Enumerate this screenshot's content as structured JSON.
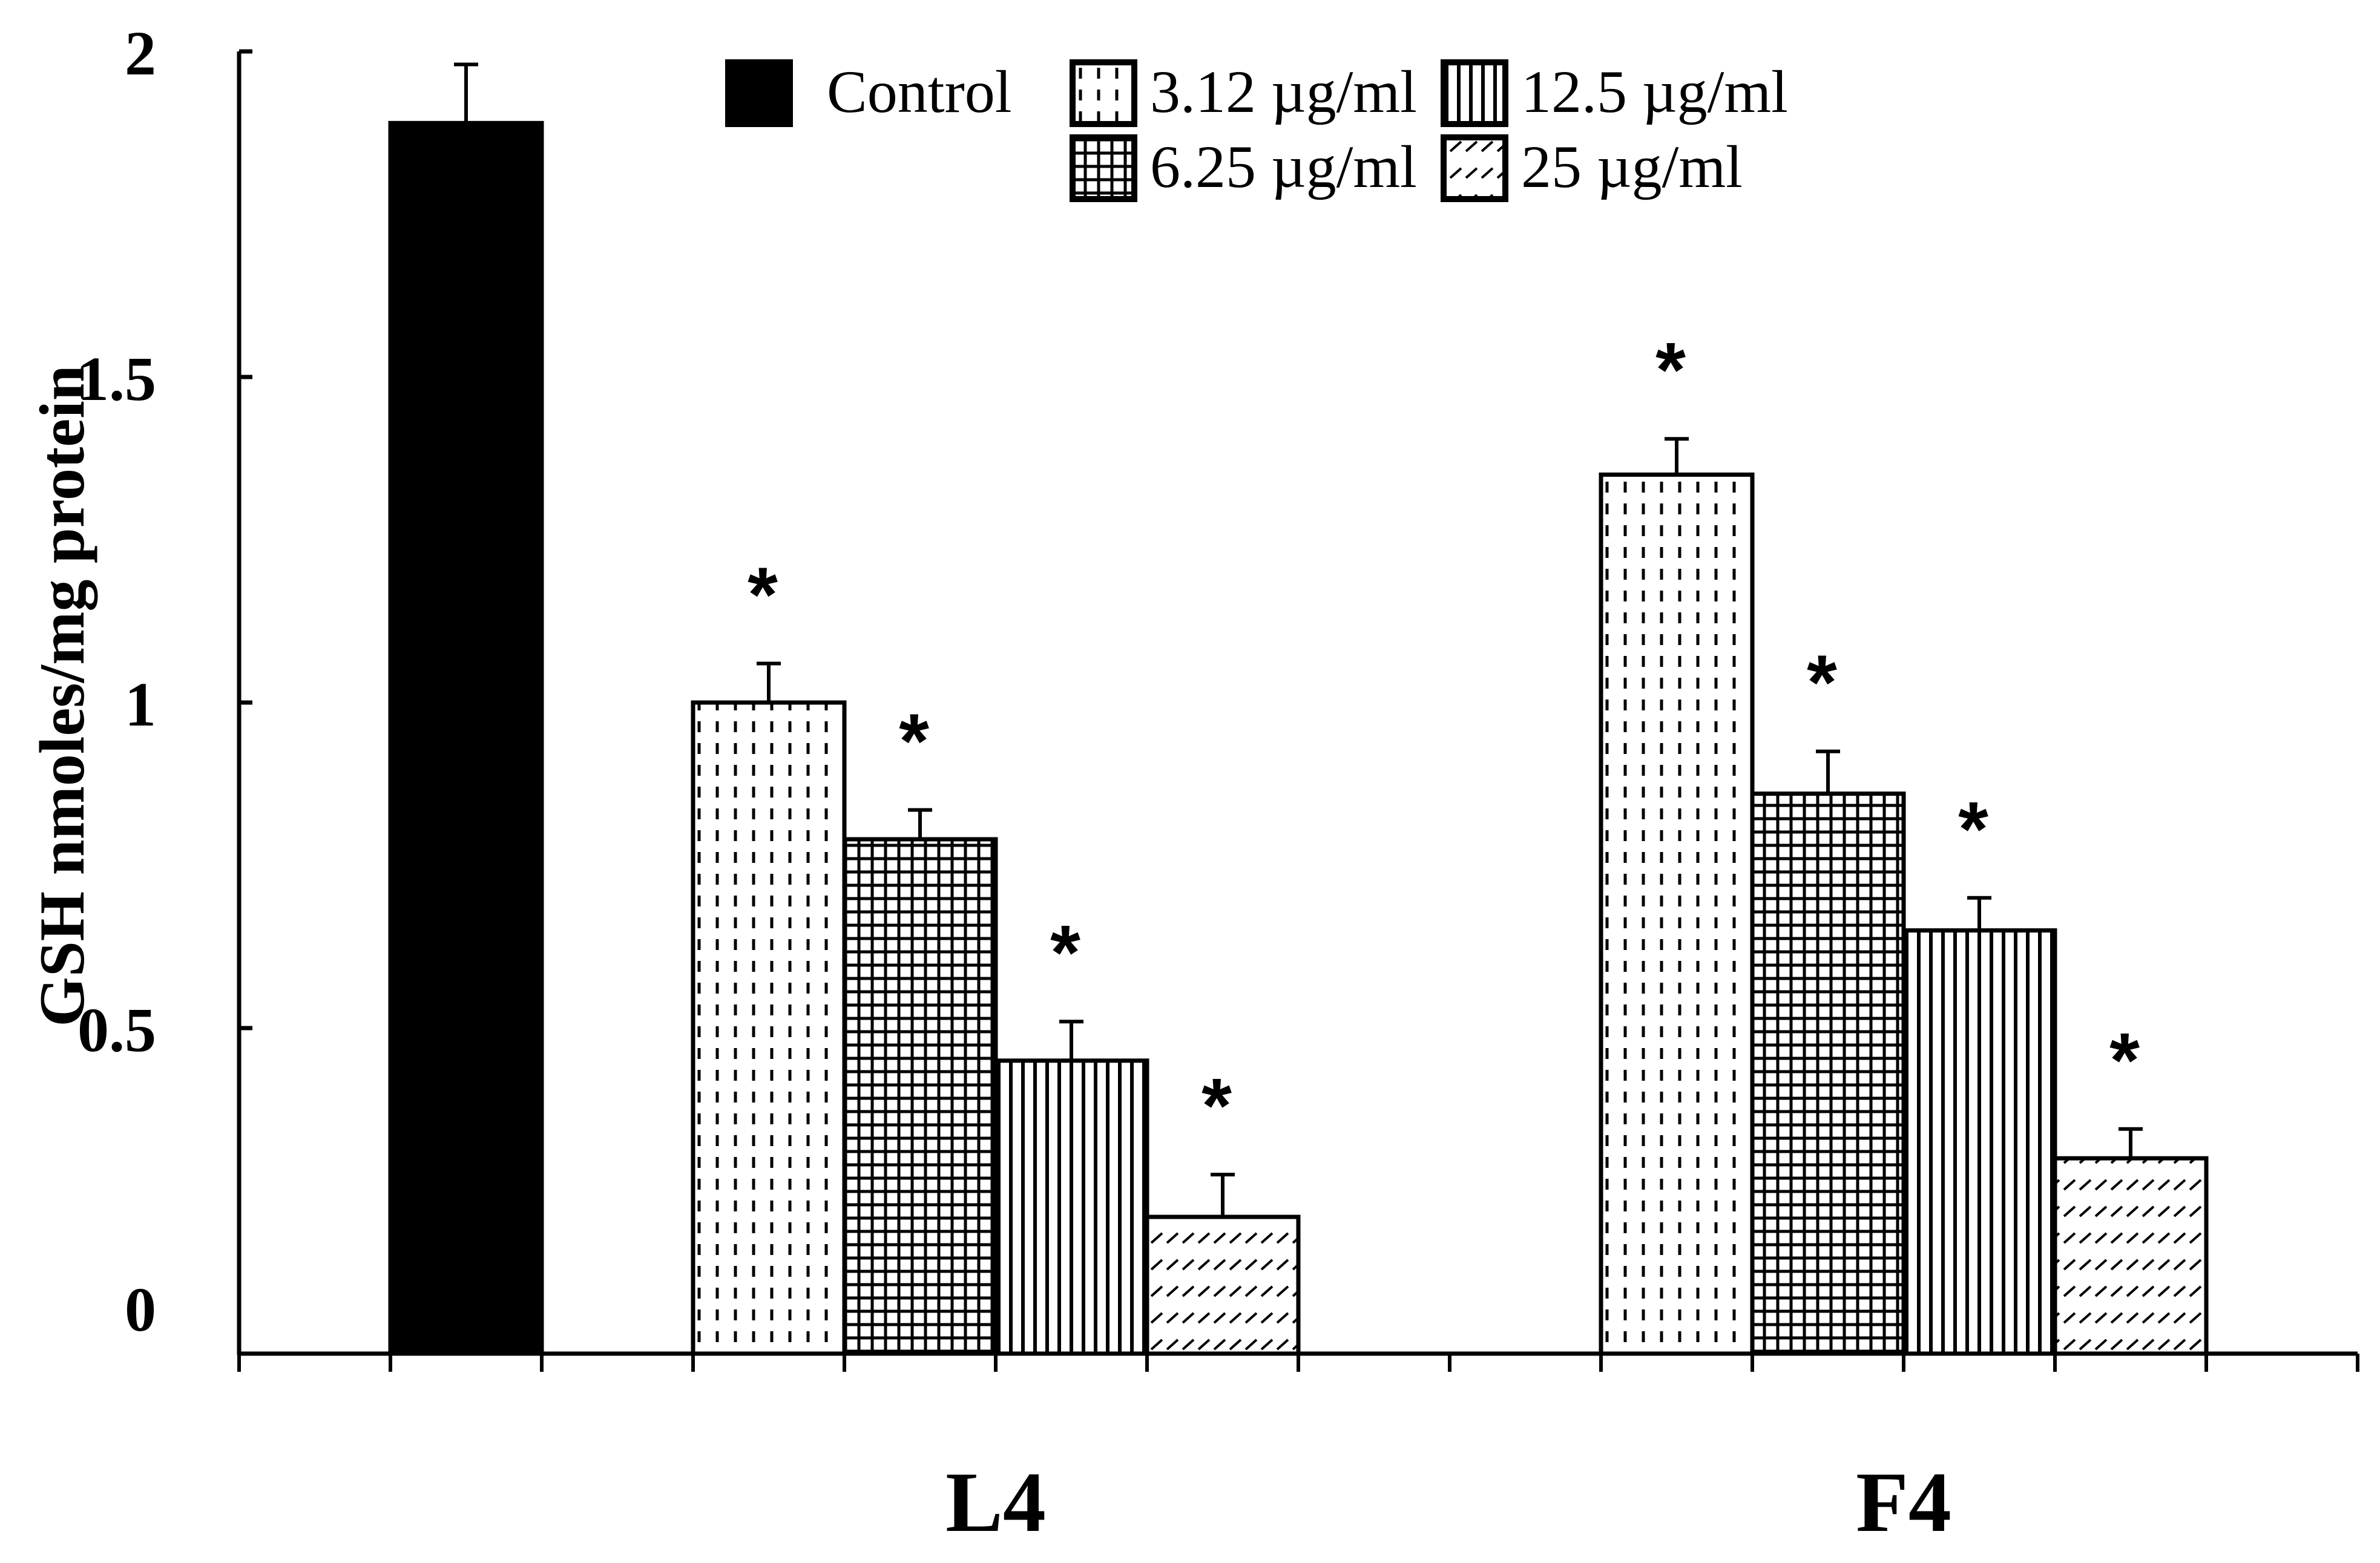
{
  "chart_data": {
    "type": "bar",
    "title": "",
    "xlabel": "",
    "ylabel": "GSH nmoles/mg protein",
    "ylim": [
      0,
      2
    ],
    "yticks": [
      "0",
      "0.5",
      "1",
      "1.5",
      "2"
    ],
    "groups": [
      {
        "name": "",
        "bars": [
          {
            "series": "Control",
            "value": 1.89,
            "error": 0.09,
            "significant": false
          }
        ]
      },
      {
        "name": "L4",
        "bars": [
          {
            "series": "3.12 µg/ml",
            "value": 1.0,
            "error": 0.06,
            "significant": true
          },
          {
            "series": "6.25 µg/ml",
            "value": 0.79,
            "error": 0.045,
            "significant": true
          },
          {
            "series": "12.5 µg/ml",
            "value": 0.45,
            "error": 0.06,
            "significant": true
          },
          {
            "series": "25 µg/ml",
            "value": 0.21,
            "error": 0.065,
            "significant": true
          }
        ]
      },
      {
        "name": "F4",
        "bars": [
          {
            "series": "3.12 µg/ml",
            "value": 1.35,
            "error": 0.055,
            "significant": true
          },
          {
            "series": "6.25 µg/ml",
            "value": 0.86,
            "error": 0.065,
            "significant": true
          },
          {
            "series": "12.5 µg/ml",
            "value": 0.65,
            "error": 0.05,
            "significant": true
          },
          {
            "series": "25 µg/ml",
            "value": 0.3,
            "error": 0.045,
            "significant": true
          }
        ]
      }
    ],
    "legend": [
      {
        "label": "Control",
        "pattern": "solid"
      },
      {
        "label": "3.12 µg/ml",
        "pattern": "dashes"
      },
      {
        "label": "12.5 µg/ml",
        "pattern": "vertical-lines"
      },
      {
        "label": "6.25 µg/ml",
        "pattern": "grid"
      },
      {
        "label": "25 µg/ml",
        "pattern": "diagonal-hatch"
      }
    ],
    "significance_marker": "*",
    "legend_position": "top-center",
    "grid": false
  }
}
